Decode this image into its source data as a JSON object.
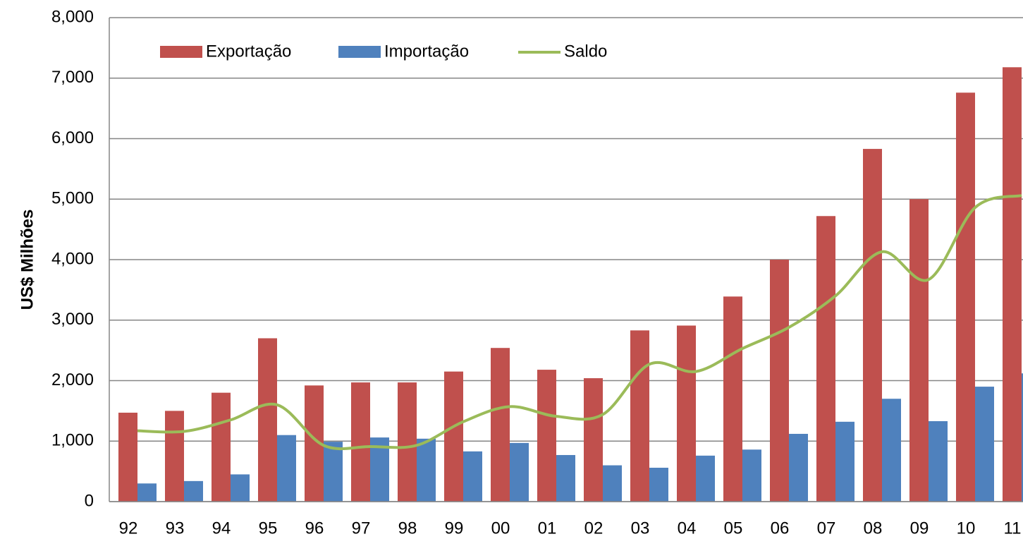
{
  "chart_data": {
    "type": "bar",
    "y_axis_label": "US$ Milhões",
    "categories": [
      "92",
      "93",
      "94",
      "95",
      "96",
      "97",
      "98",
      "99",
      "00",
      "01",
      "02",
      "03",
      "04",
      "05",
      "06",
      "07",
      "08",
      "09",
      "10",
      "11"
    ],
    "series": [
      {
        "name": "Exportação",
        "type": "bar",
        "color": "#c0504d",
        "values": [
          1470,
          1500,
          1800,
          2700,
          1920,
          1970,
          1970,
          2150,
          2540,
          2180,
          2040,
          2830,
          2910,
          3390,
          4000,
          4720,
          5830,
          5000,
          6760,
          7180
        ]
      },
      {
        "name": "Importação",
        "type": "bar",
        "color": "#4f81bd",
        "values": [
          300,
          340,
          450,
          1100,
          990,
          1060,
          1040,
          830,
          970,
          770,
          600,
          560,
          760,
          860,
          1120,
          1320,
          1700,
          1330,
          1900,
          2120
        ]
      },
      {
        "name": "Saldo",
        "type": "line",
        "color": "#9bbb59",
        "values": [
          1170,
          1160,
          1350,
          1600,
          930,
          910,
          930,
          1320,
          1570,
          1410,
          1440,
          2270,
          2150,
          2530,
          2880,
          3400,
          4130,
          3670,
          4860,
          5060
        ]
      }
    ],
    "ylim": [
      0,
      8000
    ],
    "yticks": [
      0,
      {
        "value": 1000,
        "label": "1,000"
      },
      {
        "value": 2000,
        "label": "2,000"
      },
      {
        "value": 3000,
        "label": "3,000"
      },
      {
        "value": 4000,
        "label": "4,000"
      },
      {
        "value": 5000,
        "label": "5,000"
      },
      {
        "value": 6000,
        "label": "6,000"
      },
      {
        "value": 7000,
        "label": "7,000"
      },
      {
        "value": 8000,
        "label": "8,000"
      }
    ],
    "grid": true,
    "legend": "top-left"
  }
}
